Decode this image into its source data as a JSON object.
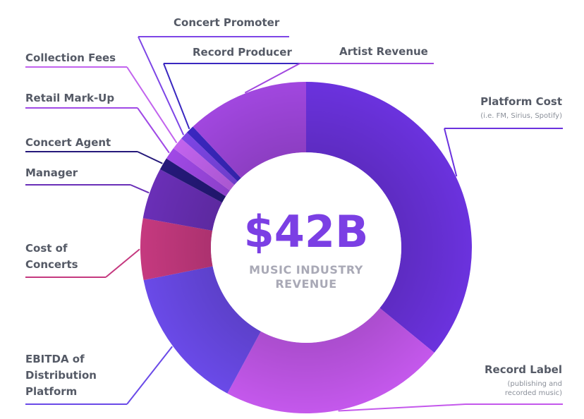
{
  "chart_data": {
    "type": "pie",
    "style": "donut",
    "center_value": "$42B",
    "center_caption_line1": "MUSIC INDUSTRY",
    "center_caption_line2": "REVENUE",
    "slices": [
      {
        "key": "platform",
        "label": "Platform Cost",
        "sublabel_lines": [
          "(i.e. FM, Sirius, Spotify)"
        ],
        "share": 0.36,
        "color": "#6b32de"
      },
      {
        "key": "record_label",
        "label": "Record Label",
        "sublabel_lines": [
          "(publishing and",
          "recorded music)"
        ],
        "share": 0.22,
        "color": "#c458ec"
      },
      {
        "key": "ebitda",
        "label_lines": [
          "EBITDA of",
          "Distribution",
          "Platform"
        ],
        "share": 0.14,
        "color": "#6a4ae8"
      },
      {
        "key": "concerts",
        "label_lines": [
          "Cost of",
          "Concerts"
        ],
        "share": 0.06,
        "color": "#c5397f"
      },
      {
        "key": "manager",
        "label": "Manager",
        "share": 0.05,
        "color": "#6a2fb7"
      },
      {
        "key": "agent",
        "label": "Concert Agent",
        "share": 0.012,
        "color": "#25197a"
      },
      {
        "key": "retail",
        "label": "Retail Mark-Up",
        "share": 0.012,
        "color": "#a049e6"
      },
      {
        "key": "collection",
        "label": "Collection Fees",
        "share": 0.012,
        "color": "#c263ee"
      },
      {
        "key": "promoter",
        "label": "Concert Promoter",
        "share": 0.008,
        "color": "#7d45e6"
      },
      {
        "key": "producer",
        "label": "Record Producer",
        "share": 0.008,
        "color": "#3a27c0"
      },
      {
        "key": "artist",
        "label": "Artist Revenue",
        "share": 0.12,
        "color": "#a147df"
      }
    ]
  }
}
